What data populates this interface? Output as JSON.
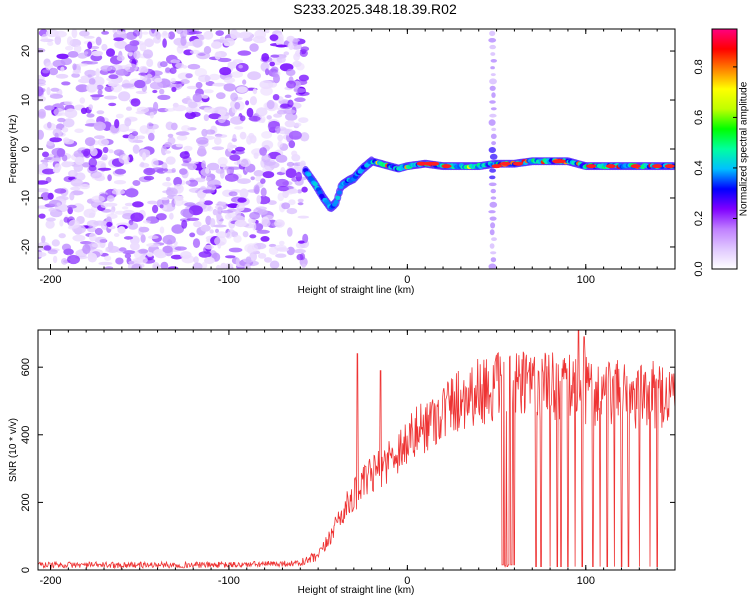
{
  "title": "S233.2025.348.18.39.R02",
  "chart_data": [
    {
      "type": "heatmap",
      "title": "S233.2025.348.18.39.R02",
      "xlabel": "Height of straight line (km)",
      "ylabel": "Frequency (Hz)",
      "xlim": [
        -207,
        150
      ],
      "ylim": [
        -24.5,
        24.5
      ],
      "xticks": [
        -200,
        -100,
        0,
        100
      ],
      "yticks": [
        -20,
        -10,
        0,
        10,
        20
      ],
      "colorbar": {
        "label": "Normalized spectral amplitude",
        "range": [
          0.0,
          0.95
        ],
        "ticks": [
          0.0,
          0.2,
          0.4,
          0.6,
          0.8
        ],
        "colormap": [
          "#ffffff",
          "#e0c8ff",
          "#c080ff",
          "#8000ff",
          "#0000ff",
          "#00c0ff",
          "#00ffa0",
          "#00ff00",
          "#c0ff00",
          "#ffff00",
          "#ff8000",
          "#ff0000",
          "#ff0080"
        ]
      },
      "noise_region": {
        "x_range": [
          -207,
          -57
        ],
        "amplitude_range": [
          0.0,
          0.12
        ]
      },
      "signal_track": {
        "x": [
          -57,
          -52,
          -47,
          -43,
          -40,
          -37,
          -33,
          -30,
          -25,
          -20,
          -15,
          -10,
          -5,
          0,
          10,
          20,
          30,
          40,
          50,
          60,
          70,
          80,
          90,
          100,
          110,
          120,
          130,
          140,
          150
        ],
        "frequency": [
          -4.5,
          -7,
          -10,
          -12,
          -11,
          -7.5,
          -6.5,
          -6,
          -4,
          -2.5,
          -3,
          -3.5,
          -4,
          -3.5,
          -3,
          -3.5,
          -3.5,
          -3.5,
          -3,
          -3,
          -2.5,
          -2.5,
          -2.5,
          -3.5,
          -3.5,
          -3.5,
          -3.5,
          -3.5,
          -3.5
        ]
      },
      "vertical_artifact": {
        "x": 48,
        "y_range": [
          -24,
          24
        ]
      }
    },
    {
      "type": "line",
      "xlabel": "Height of straight line (km)",
      "ylabel": "SNR (10 * v/v)",
      "xlim": [
        -207,
        150
      ],
      "ylim": [
        0,
        710
      ],
      "xticks": [
        -200,
        -100,
        0,
        100
      ],
      "yticks": [
        0,
        200,
        400,
        600
      ],
      "series": [
        {
          "name": "SNR",
          "color": "#ee3333",
          "x": [
            -207,
            -150,
            -100,
            -60,
            -50,
            -45,
            -40,
            -35,
            -30,
            -25,
            -20,
            -10,
            0,
            10,
            20,
            30,
            40,
            50,
            60,
            70,
            80,
            90,
            100,
            110,
            120,
            130,
            140,
            150
          ],
          "y": [
            15,
            15,
            15,
            20,
            40,
            80,
            140,
            180,
            220,
            250,
            280,
            330,
            380,
            430,
            470,
            510,
            530,
            540,
            540,
            545,
            545,
            550,
            530,
            520,
            520,
            510,
            520,
            520
          ]
        }
      ],
      "annotations": {
        "spikes": [
          {
            "x": -28,
            "y": 640
          },
          {
            "x": -15,
            "y": 590
          },
          {
            "x": 96,
            "y": 710
          },
          {
            "x": 99,
            "y": 690
          }
        ],
        "dropouts": [
          53,
          55,
          56,
          58,
          60,
          72,
          75,
          80,
          84,
          86,
          90,
          94,
          98,
          104,
          108,
          112,
          116,
          120,
          124,
          130,
          136,
          140
        ]
      }
    }
  ]
}
